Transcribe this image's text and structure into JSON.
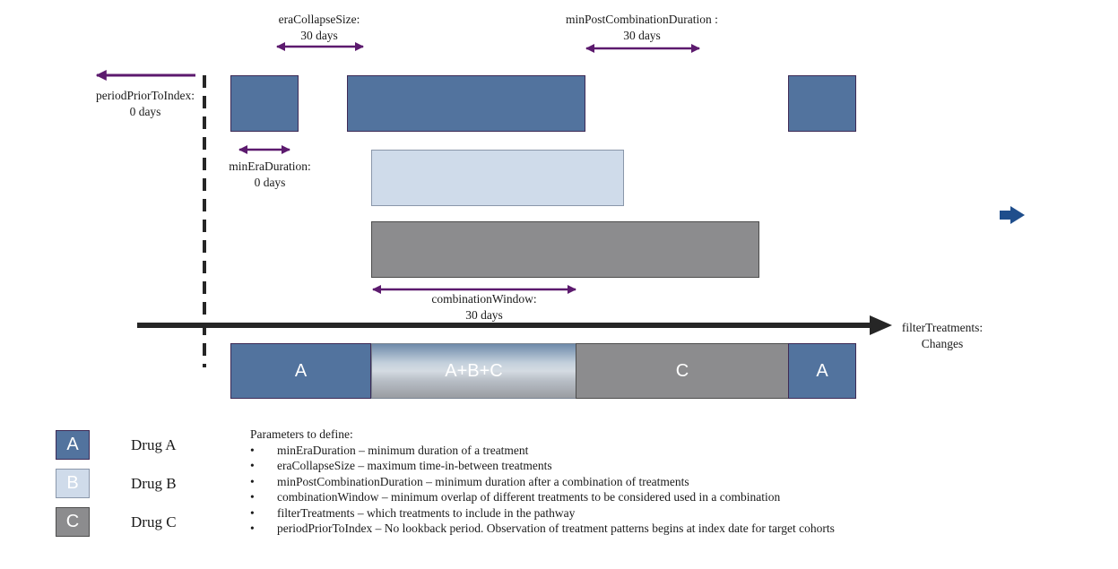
{
  "annotations": {
    "eraCollapseSize": {
      "name": "eraCollapseSize:",
      "value": "30 days"
    },
    "minPostCombinationDuration": {
      "name": "minPostCombinationDuration :",
      "value": "30 days"
    },
    "periodPriorToIndex": {
      "name": "periodPriorToIndex:",
      "value": "0 days"
    },
    "minEraDuration": {
      "name": "minEraDuration:",
      "value": "0 days"
    },
    "combinationWindow": {
      "name": "combinationWindow:",
      "value": "30 days"
    },
    "filterTreatments": {
      "name": "filterTreatments:",
      "value": "Changes"
    }
  },
  "pathway": {
    "segments": [
      "A",
      "A+B+C",
      "C",
      "A"
    ]
  },
  "legend": [
    {
      "code": "A",
      "name": "Drug A",
      "color": "#52739e"
    },
    {
      "code": "B",
      "name": "Drug B",
      "color": "#cfdbea"
    },
    {
      "code": "C",
      "name": "Drug C",
      "color": "#8c8c8e"
    }
  ],
  "parameters": {
    "heading": "Parameters to define:",
    "items": [
      "minEraDuration – minimum duration of a treatment",
      "eraCollapseSize – maximum time-in-between treatments",
      "minPostCombinationDuration – minimum duration after a combination of treatments",
      "combinationWindow – minimum overlap of different treatments to be considered used in a combination",
      "filterTreatments – which treatments to include in the pathway",
      "periodPriorToIndex – No lookback period. Observation of treatment patterns begins at index date for target cohorts"
    ]
  },
  "colors": {
    "arrow_purple": "#5c1a6e",
    "timeline": "#262626",
    "nav_arrow": "#1f4e8c"
  }
}
